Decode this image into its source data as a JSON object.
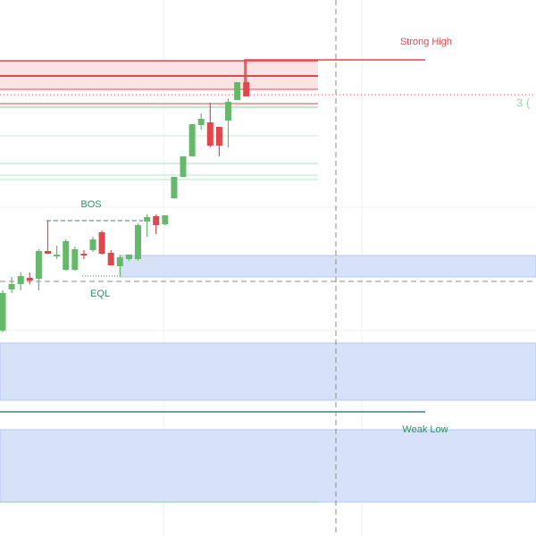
{
  "chart_data": {
    "type": "candlestick",
    "ylim": [
      0,
      600
    ],
    "up_color": "#66b96a",
    "down_color": "#e0474c",
    "annotations": {
      "strong_high": "Strong High",
      "bos": "BOS",
      "eql": "EQL",
      "weak_low": "Weak Low",
      "edge_label": "3 ("
    },
    "open": [
      230,
      276,
      282,
      289,
      288,
      319,
      313,
      298,
      298,
      316,
      320,
      340,
      317,
      302,
      310,
      310,
      352,
      358,
      349,
      378,
      402,
      425,
      460,
      463,
      458,
      465,
      488,
      508
    ],
    "high": [
      275,
      290,
      295,
      295,
      321,
      353,
      325,
      332,
      324,
      320,
      335,
      342,
      320,
      315,
      315,
      350,
      360,
      360,
      359,
      402,
      425,
      461,
      473,
      485,
      458,
      490,
      508,
      533
    ],
    "low": [
      228,
      272,
      275,
      282,
      275,
      316,
      310,
      297,
      297,
      310,
      318,
      315,
      303,
      290,
      308,
      308,
      335,
      338,
      348,
      378,
      402,
      425,
      455,
      435,
      425,
      435,
      488,
      492
    ],
    "close": [
      272,
      282,
      291,
      286,
      319,
      316,
      315,
      330,
      321,
      314,
      332,
      316,
      303,
      312,
      315,
      348,
      357,
      348,
      359,
      402,
      425,
      461,
      467,
      437,
      437,
      486,
      508,
      492
    ]
  }
}
